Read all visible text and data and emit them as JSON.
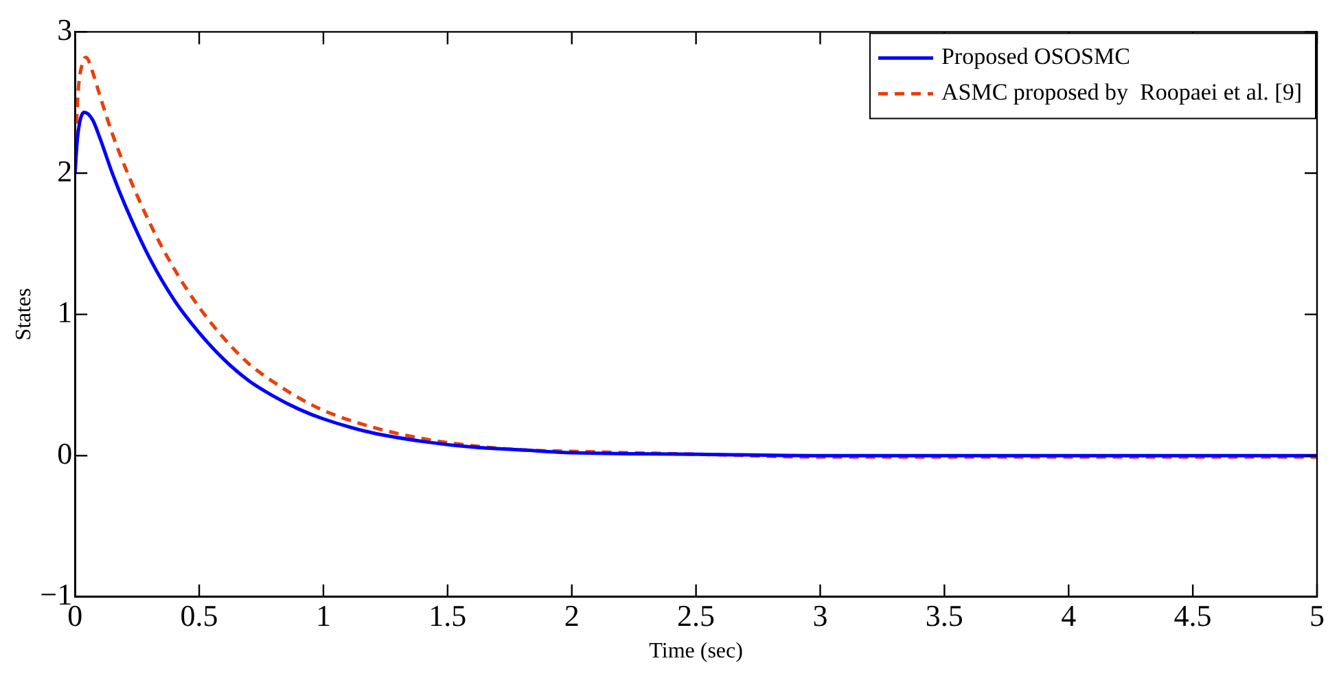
{
  "chart_data": {
    "type": "line",
    "xlabel": "Time (sec)",
    "ylabel": "States",
    "xlim": [
      0,
      5
    ],
    "ylim": [
      -1,
      3
    ],
    "xticks": [
      0,
      0.5,
      1,
      1.5,
      2,
      2.5,
      3,
      3.5,
      4,
      4.5,
      5
    ],
    "yticks": [
      -1,
      0,
      1,
      2,
      3
    ],
    "grid": false,
    "legend": "top right",
    "marker": "none",
    "series": [
      {
        "name": "Proposed OSOSMC",
        "color": "#0000ff",
        "line_style": "solid",
        "x": [
          0,
          0.01,
          0.037,
          0.07,
          0.1,
          0.15,
          0.2,
          0.3,
          0.4,
          0.5,
          0.6,
          0.7,
          0.8,
          0.9,
          1,
          1.2,
          1.4,
          1.6,
          1.8,
          2,
          2.5,
          3,
          4,
          5
        ],
        "values": [
          2,
          2.25,
          2.43,
          2.38,
          2.25,
          2,
          1.78,
          1.4,
          1.1,
          0.87,
          0.68,
          0.53,
          0.42,
          0.33,
          0.26,
          0.16,
          0.1,
          0.06,
          0.04,
          0.02,
          0.01,
          0,
          0,
          0
        ]
      },
      {
        "name": "ASMC proposed by  Roopaei et al. [9]",
        "color": "#e8400c",
        "line_style": "dashed",
        "x": [
          0,
          0.01,
          0.03,
          0.045,
          0.07,
          0.1,
          0.15,
          0.2,
          0.3,
          0.4,
          0.5,
          0.6,
          0.7,
          0.8,
          0.9,
          1,
          1.2,
          1.4,
          1.6,
          1.8,
          2,
          2.5,
          3,
          4,
          5
        ],
        "values": [
          2,
          2.5,
          2.78,
          2.82,
          2.72,
          2.55,
          2.28,
          2.05,
          1.65,
          1.32,
          1.05,
          0.83,
          0.65,
          0.52,
          0.41,
          0.32,
          0.2,
          0.12,
          0.07,
          0.04,
          0.03,
          0.01,
          -0.01,
          -0.01,
          -0.01
        ]
      }
    ]
  }
}
